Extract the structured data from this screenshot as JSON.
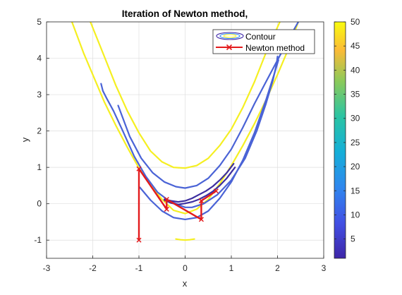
{
  "chart_data": {
    "type": "line",
    "title": "Iteration of Newton method,",
    "xlabel": "x",
    "ylabel": "y",
    "xlim": [
      -3,
      3
    ],
    "ylim": [
      -1.5,
      5
    ],
    "xticks": [
      -3,
      -2,
      -1,
      0,
      1,
      2,
      3
    ],
    "yticks": [
      -1,
      0,
      1,
      2,
      3,
      4,
      5
    ],
    "grid": true,
    "legend": {
      "placement": "top-right",
      "entries": [
        "Contour",
        "Newton method"
      ]
    },
    "colorbar": {
      "ticks": [
        5,
        10,
        15,
        20,
        25,
        30,
        35,
        40,
        45,
        50
      ],
      "range": [
        1,
        50
      ],
      "colormap": "parula"
    },
    "series": [
      {
        "name": "Newton method",
        "color": "#e31a1c",
        "marker": "x",
        "x": [
          -1,
          -1,
          -0.4,
          -0.4,
          0.35,
          0.35,
          0.67
        ],
        "y": [
          -1,
          0.96,
          -0.15,
          0.12,
          -0.43,
          0.08,
          0.35
        ]
      }
    ],
    "contours": [
      {
        "name": "Contour",
        "level": 50,
        "color": "#f5ef21",
        "x": [
          -2.45,
          -2.2,
          -2.0,
          -1.75,
          -1.5,
          -1.25,
          -1.0,
          -0.75,
          -0.5,
          -0.25,
          0,
          0.25,
          0.5,
          0.75,
          1.0,
          1.25,
          1.5,
          1.75,
          2.0,
          2.2,
          2.45
        ],
        "y": [
          5.0,
          4.15,
          3.55,
          2.8,
          2.15,
          1.55,
          0.98,
          0.5,
          0.12,
          -0.18,
          -0.27,
          -0.15,
          0.12,
          0.55,
          1.05,
          1.6,
          2.2,
          2.85,
          3.55,
          4.15,
          5.0
        ]
      },
      {
        "name": "Contour",
        "level": 50,
        "color": "#f5ef21",
        "x": [
          -2.05,
          -1.75,
          -1.5,
          -1.25,
          -1.0,
          -0.75,
          -0.5,
          -0.25,
          0,
          0.25,
          0.5,
          0.75,
          1.0,
          1.25,
          1.5,
          1.75,
          2.05
        ],
        "y": [
          5.0,
          4.05,
          3.25,
          2.55,
          1.95,
          1.45,
          1.15,
          1.0,
          0.98,
          1.05,
          1.25,
          1.6,
          2.05,
          2.65,
          3.35,
          4.15,
          5.0
        ]
      },
      {
        "name": "Contour",
        "level": 50,
        "color": "#f5ef21",
        "x": [
          -0.2,
          -0.1,
          0,
          0.1,
          0.2
        ],
        "y": [
          -0.97,
          -0.99,
          -1.0,
          -0.99,
          -0.97
        ]
      },
      {
        "name": "Contour",
        "level": 15,
        "color": "#4a63d6",
        "x": [
          -1.82,
          -1.78,
          -1.7,
          -1.55,
          -1.35,
          -1.1,
          -0.85,
          -0.6,
          -0.35,
          -0.1,
          0,
          0.15,
          0.4,
          0.7,
          1.0,
          1.3,
          1.55,
          1.75,
          1.9,
          1.98,
          2.0
        ],
        "y": [
          3.3,
          3.1,
          2.9,
          2.55,
          2.0,
          1.3,
          0.75,
          0.32,
          0.08,
          -0.05,
          -0.1,
          -0.1,
          0.0,
          0.25,
          0.65,
          1.25,
          2.0,
          2.75,
          3.4,
          3.85,
          4.05
        ]
      },
      {
        "name": "Contour",
        "level": 15,
        "color": "#4a63d6",
        "x": [
          -0.98,
          -0.75,
          -0.5,
          -0.25,
          0,
          0.25,
          0.5,
          0.75,
          1.0,
          1.25,
          1.5,
          1.75,
          1.95,
          2.02
        ],
        "y": [
          0.45,
          0.1,
          -0.2,
          -0.38,
          -0.43,
          -0.38,
          -0.2,
          0.15,
          0.6,
          1.2,
          1.95,
          2.85,
          3.65,
          3.95
        ]
      },
      {
        "name": "Contour",
        "level": 10,
        "color": "#4a63d6",
        "x": [
          -1.45,
          -1.2,
          -0.95,
          -0.7,
          -0.45,
          -0.2,
          0,
          0.25,
          0.5,
          0.75,
          1.0,
          1.25,
          1.5,
          1.75,
          2.0,
          2.25,
          2.45
        ],
        "y": [
          2.7,
          1.85,
          1.25,
          0.85,
          0.6,
          0.47,
          0.43,
          0.5,
          0.7,
          1.05,
          1.5,
          2.1,
          2.75,
          3.35,
          3.95,
          4.55,
          5.0
        ]
      },
      {
        "name": "Contour",
        "level": 5,
        "color": "#3d2fa0",
        "x": [
          -0.45,
          -0.3,
          -0.15,
          0,
          0.15,
          0.3,
          0.45,
          0.6,
          0.75,
          0.9,
          1.05
        ],
        "y": [
          0.12,
          0.08,
          0.05,
          0.08,
          0.15,
          0.25,
          0.35,
          0.48,
          0.65,
          0.85,
          1.1
        ]
      },
      {
        "name": "Contour",
        "level": 5,
        "color": "#3d2fa0",
        "x": [
          -0.45,
          -0.3,
          -0.15,
          0,
          0.15,
          0.3,
          0.45,
          0.6,
          0.75,
          0.9,
          1.08
        ],
        "y": [
          0.1,
          0.02,
          -0.02,
          0.01,
          0.05,
          0.12,
          0.22,
          0.34,
          0.5,
          0.7,
          1.0
        ]
      }
    ]
  }
}
